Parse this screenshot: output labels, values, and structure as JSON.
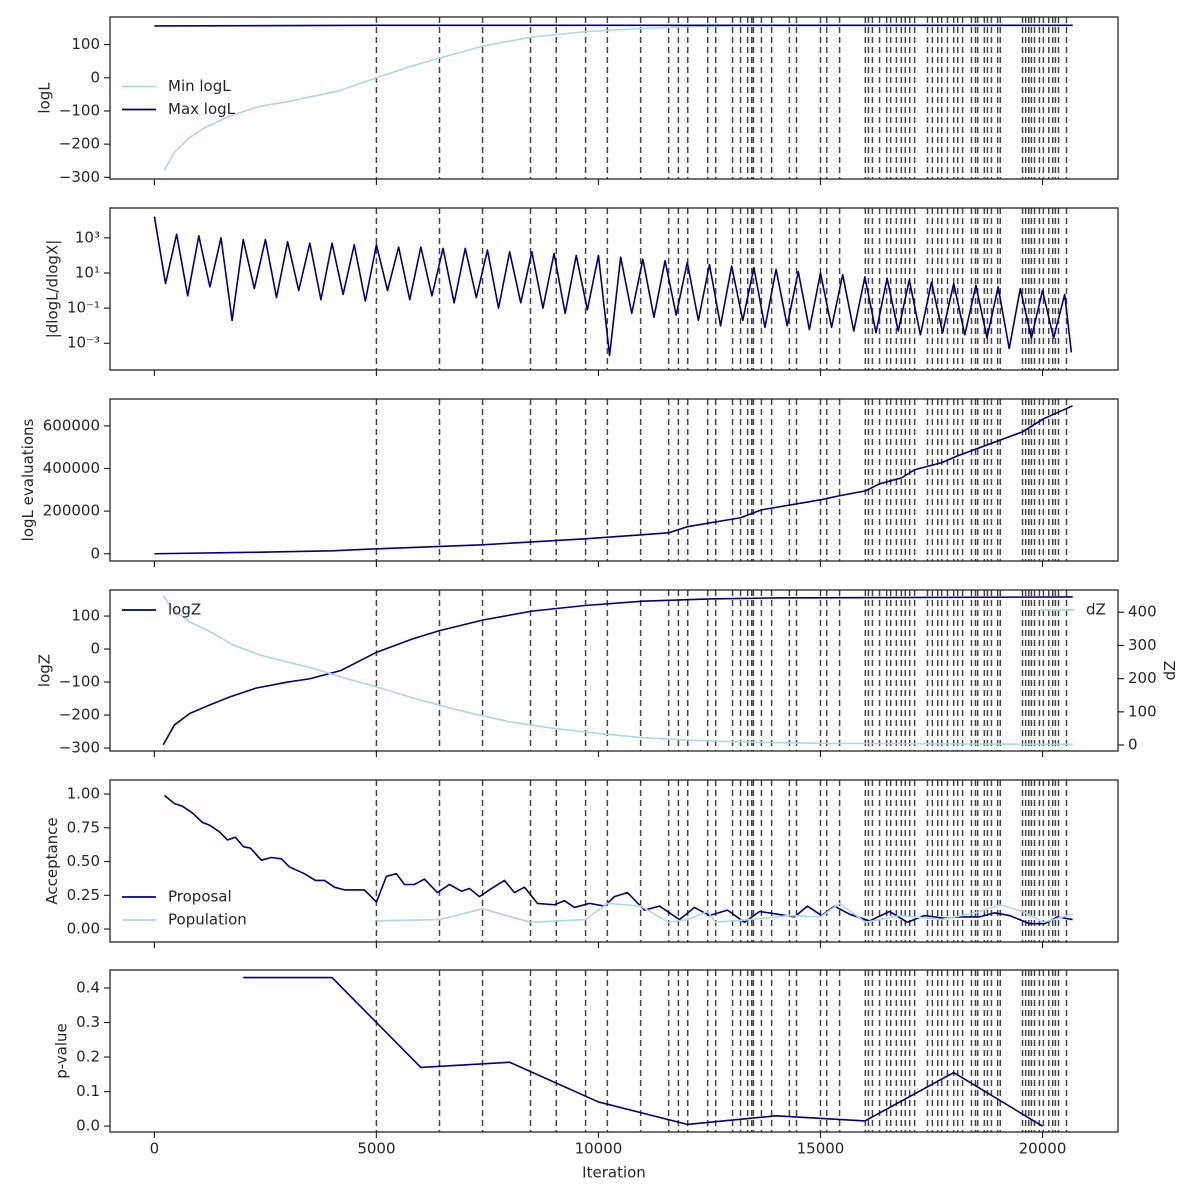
{
  "chart_data": [
    {
      "type": "line",
      "ylabel": "logL",
      "xlim": [
        -1000,
        21700
      ],
      "xticks": [
        0,
        5000,
        10000,
        15000,
        20000
      ],
      "show_xticklabels": false,
      "ylim": [
        -305,
        183
      ],
      "yticks": [
        {
          "value": -300,
          "label": "−300"
        },
        {
          "value": -200,
          "label": "−200"
        },
        {
          "value": -100,
          "label": "−100"
        },
        0,
        100
      ],
      "legend": "center left",
      "series": [
        {
          "name": "Min logL",
          "color": "#add8e6",
          "x": [
            225,
            450,
            788,
            1126,
            1689,
            2365,
            3041,
            4167,
            5000,
            5743,
            6419,
            7387,
            8468,
            9707,
            10946,
            12005,
            13400,
            20680
          ],
          "values": [
            -279,
            -225,
            -181,
            -151,
            -116,
            -86,
            -71,
            -39,
            0,
            33,
            59,
            95,
            122,
            139,
            148,
            154,
            157,
            158
          ]
        },
        {
          "name": "Max logL",
          "color": "#000080",
          "x": [
            0,
            5000,
            10000,
            15000,
            20680
          ],
          "values": [
            156,
            158,
            158,
            158,
            158
          ]
        }
      ]
    },
    {
      "type": "line",
      "ylabel": "|dlogL/dlogX|",
      "log": true,
      "xlim": [
        -1000,
        21700
      ],
      "xticks": [
        0,
        5000,
        10000,
        15000,
        20000
      ],
      "show_xticklabels": false,
      "ylim": [
        3e-05,
        50000
      ],
      "yticks": [
        {
          "value": 0.001,
          "label": "10⁻³"
        },
        {
          "value": 0.1,
          "label": "10⁻¹"
        },
        {
          "value": 10,
          "label": "10¹"
        },
        {
          "value": 1000,
          "label": "10³"
        }
      ],
      "series": [
        {
          "color": "#000080",
          "x": [
            0,
            250,
            500,
            750,
            1000,
            1250,
            1500,
            1750,
            2000,
            2250,
            2500,
            2750,
            3000,
            3250,
            3500,
            3750,
            4000,
            4250,
            4500,
            4750,
            5000,
            5250,
            5500,
            5750,
            6000,
            6250,
            6500,
            6750,
            7000,
            7250,
            7500,
            7750,
            8000,
            8250,
            8500,
            8750,
            9000,
            9250,
            9500,
            9750,
            10000,
            10250,
            10500,
            10750,
            11000,
            11250,
            11500,
            11750,
            12000,
            12250,
            12500,
            12750,
            13000,
            13250,
            13500,
            13750,
            14000,
            14250,
            14500,
            14750,
            15000,
            15250,
            15500,
            15750,
            16000,
            16250,
            16500,
            16750,
            17000,
            17250,
            17500,
            17750,
            18000,
            18250,
            18500,
            18750,
            19000,
            19250,
            19500,
            19750,
            20000,
            20250,
            20500,
            20650
          ],
          "values": [
            16000,
            2.5,
            1600,
            0.5,
            1300,
            1.6,
            1000,
            0.02,
            800,
            1.3,
            800,
            0.4,
            600,
            1,
            500,
            0.3,
            500,
            0.6,
            400,
            0.25,
            400,
            1,
            300,
            0.3,
            300,
            0.5,
            250,
            0.2,
            250,
            0.4,
            200,
            0.1,
            160,
            0.2,
            160,
            0.1,
            130,
            0.05,
            100,
            0.08,
            100,
            0.0002,
            80,
            0.05,
            60,
            0.03,
            50,
            0.04,
            40,
            0.02,
            30,
            0.01,
            25,
            0.02,
            20,
            0.008,
            16,
            0.01,
            12,
            0.006,
            10,
            0.008,
            8,
            0.005,
            6,
            0.004,
            5,
            0.005,
            4,
            0.003,
            3,
            0.004,
            2.5,
            0.003,
            2,
            0.002,
            1.6,
            0.0005,
            1.3,
            0.002,
            1,
            0.002,
            0.6,
            0.0003
          ]
        }
      ]
    },
    {
      "type": "line",
      "ylabel": "logL evaluations",
      "xlim": [
        -1000,
        21700
      ],
      "xticks": [
        0,
        5000,
        10000,
        15000,
        20000
      ],
      "show_xticklabels": false,
      "ylim": [
        -34000,
        726000
      ],
      "yticks": [
        0,
        200000,
        400000,
        600000
      ],
      "series": [
        {
          "color": "#000080",
          "x": [
            0,
            2000,
            4000,
            5000,
            7387,
            9707,
            11577,
            12005,
            13198,
            13671,
            15000,
            15428,
            16014,
            16329,
            16824,
            17117,
            17725,
            18086,
            18694,
            19550,
            20023,
            20676
          ],
          "values": [
            0,
            6000,
            14000,
            23000,
            42000,
            70000,
            98000,
            127000,
            169000,
            206000,
            253000,
            272000,
            295000,
            328000,
            356000,
            394000,
            427000,
            459000,
            506000,
            572000,
            633000,
            694000
          ]
        }
      ]
    },
    {
      "type": "line",
      "ylabel": "logZ",
      "y2label": "dZ",
      "xlim": [
        -1000,
        21700
      ],
      "xticks": [
        0,
        5000,
        10000,
        15000,
        20000
      ],
      "show_xticklabels": false,
      "ylim": [
        -309,
        179
      ],
      "yticks": [
        {
          "value": -300,
          "label": "−300"
        },
        {
          "value": -200,
          "label": "−200"
        },
        {
          "value": -100,
          "label": "−100"
        },
        0,
        100
      ],
      "y2lim": [
        -18,
        467
      ],
      "y2ticks": [
        0,
        100,
        200,
        300,
        400
      ],
      "legend": "upper left",
      "legend_y2": "upper right",
      "series": [
        {
          "name": "logZ",
          "color": "#000080",
          "x": [
            200,
            450,
            800,
            1200,
            1700,
            2300,
            3000,
            3500,
            4200,
            5000,
            5800,
            6400,
            7400,
            8500,
            9700,
            11000,
            12500,
            14000,
            20680
          ],
          "values": [
            -290,
            -230,
            -195,
            -172,
            -145,
            -118,
            -100,
            -90,
            -65,
            -10,
            30,
            55,
            88,
            115,
            132,
            145,
            152,
            155,
            158
          ]
        },
        {
          "name": "dZ",
          "color": "#add8e6",
          "axis": "y2",
          "x": [
            200,
            400,
            800,
            1200,
            1800,
            2400,
            3000,
            3600,
            4200,
            5000,
            6000,
            7000,
            8000,
            9000,
            10000,
            11000,
            12000,
            13000,
            15000,
            20680
          ],
          "values": [
            450,
            410,
            370,
            345,
            300,
            270,
            250,
            230,
            205,
            175,
            135,
            100,
            70,
            50,
            35,
            22,
            15,
            10,
            5,
            2
          ]
        }
      ]
    },
    {
      "type": "line",
      "ylabel": "Acceptance",
      "xlim": [
        -1000,
        21700
      ],
      "xticks": [
        0,
        5000,
        10000,
        15000,
        20000
      ],
      "show_xticklabels": false,
      "ylim": [
        -0.096,
        1.104
      ],
      "yticks": [
        {
          "value": 0,
          "label": "0.00"
        },
        {
          "value": 0.25,
          "label": "0.25"
        },
        {
          "value": 0.5,
          "label": "0.50"
        },
        {
          "value": 0.75,
          "label": "0.75"
        },
        {
          "value": 1,
          "label": "1.00"
        }
      ],
      "legend": "lower left",
      "series": [
        {
          "name": "Proposal",
          "color": "#000080",
          "x": [
            225,
            450,
            630,
            856,
            1081,
            1239,
            1464,
            1644,
            1824,
            2004,
            2162,
            2410,
            2635,
            2860,
            3041,
            3378,
            3626,
            3829,
            4054,
            4279,
            4730,
            5000,
            5225,
            5450,
            5631,
            5856,
            6081,
            6374,
            6644,
            6914,
            7095,
            7320,
            7590,
            7883,
            8108,
            8333,
            8626,
            9009,
            9234,
            9459,
            9797,
            10135,
            10360,
            10653,
            11036,
            11374,
            11824,
            12162,
            12500,
            12905,
            13288,
            13626,
            14032,
            14414,
            14707,
            15023,
            15315,
            15653,
            16104,
            16554,
            16959,
            17342,
            17793,
            18131,
            18581,
            18919,
            19257,
            19707,
            20045,
            20338,
            20676
          ],
          "values": [
            0.99,
            0.93,
            0.91,
            0.86,
            0.79,
            0.77,
            0.72,
            0.66,
            0.68,
            0.61,
            0.6,
            0.51,
            0.53,
            0.52,
            0.46,
            0.41,
            0.36,
            0.36,
            0.31,
            0.29,
            0.29,
            0.2,
            0.39,
            0.41,
            0.33,
            0.33,
            0.37,
            0.27,
            0.33,
            0.28,
            0.3,
            0.24,
            0.3,
            0.36,
            0.27,
            0.31,
            0.19,
            0.18,
            0.21,
            0.16,
            0.19,
            0.17,
            0.24,
            0.27,
            0.14,
            0.17,
            0.07,
            0.16,
            0.1,
            0.14,
            0.05,
            0.13,
            0.11,
            0.09,
            0.17,
            0.1,
            0.17,
            0.11,
            0.06,
            0.13,
            0.05,
            0.1,
            0.08,
            0.09,
            0.09,
            0.12,
            0.1,
            0.04,
            0.04,
            0.09,
            0.07
          ]
        },
        {
          "name": "Population",
          "color": "#add8e6",
          "x": [
            5000,
            6419,
            7387,
            8468,
            9707,
            10203,
            10946,
            11577,
            12005,
            12455,
            12635,
            13400,
            14302,
            15000,
            15428,
            16014,
            16780,
            17725,
            18491,
            19054,
            19550,
            20023,
            20676
          ],
          "values": [
            0.06,
            0.07,
            0.15,
            0.05,
            0.07,
            0.19,
            0.17,
            0.05,
            0.07,
            0.13,
            0.05,
            0.07,
            0.1,
            0.09,
            0.19,
            0.05,
            0.1,
            0.07,
            0.12,
            0.18,
            0.13,
            0.05,
            0.11
          ]
        }
      ]
    },
    {
      "type": "line",
      "ylabel": "p-value",
      "xlabel": "Iteration",
      "xlim": [
        -1000,
        21700
      ],
      "xticks": [
        0,
        5000,
        10000,
        15000,
        20000
      ],
      "show_xticklabels": true,
      "ylim": [
        -0.017,
        0.452
      ],
      "yticks": [
        {
          "value": 0,
          "label": "0.0"
        },
        0.1,
        0.2,
        0.3,
        0.4
      ],
      "series": [
        {
          "color": "#000080",
          "x": [
            2000,
            4000,
            6000,
            8000,
            10000,
            12000,
            14000,
            16000,
            18000,
            20000
          ],
          "values": [
            0.43,
            0.43,
            0.17,
            0.185,
            0.07,
            0.005,
            0.03,
            0.015,
            0.155,
            0
          ]
        }
      ]
    }
  ],
  "vlines": [
    5000,
    6420,
    7390,
    8470,
    9050,
    9710,
    10200,
    10950,
    11580,
    11800,
    12010,
    12460,
    12640,
    13020,
    13200,
    13360,
    13450,
    13490,
    13670,
    13900,
    14300,
    14460,
    15000,
    15140,
    15430,
    16010,
    16080,
    16170,
    16330,
    16490,
    16580,
    16710,
    16820,
    16910,
    17010,
    17120,
    17410,
    17520,
    17640,
    17730,
    17860,
    18000,
    18090,
    18200,
    18400,
    18490,
    18540,
    18690,
    18760,
    18850,
    18990,
    19050,
    19550,
    19620,
    19690,
    19750,
    19820,
    19930,
    20020,
    20140,
    20230,
    20290,
    20360,
    20540
  ]
}
